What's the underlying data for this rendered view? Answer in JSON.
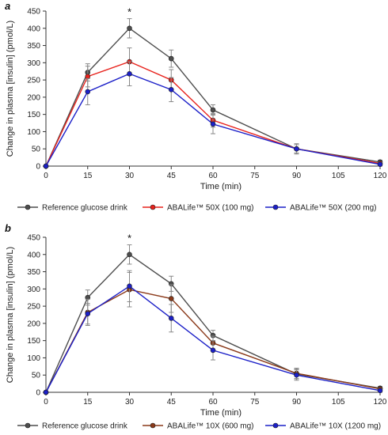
{
  "chart_data": [
    {
      "type": "line",
      "panel_label": "a",
      "xlabel": "Time (min)",
      "ylabel": "Change in plasma [insulin] (pmol/L)",
      "xlim": [
        0,
        120
      ],
      "ylim": [
        0,
        450
      ],
      "xticks": [
        0,
        15,
        30,
        45,
        60,
        75,
        90,
        105,
        120
      ],
      "yticks": [
        0,
        50,
        100,
        150,
        200,
        250,
        300,
        350,
        400,
        450
      ],
      "grid": false,
      "legend_position": "bottom",
      "annotation": {
        "text": "*",
        "x": 30
      },
      "series": [
        {
          "name": "Reference glucose drink",
          "color": "#4d4d4d",
          "x": [
            0,
            15,
            30,
            45,
            60,
            90,
            120
          ],
          "y": [
            0,
            272,
            400,
            312,
            163,
            50,
            12
          ],
          "err": [
            0,
            25,
            28,
            25,
            15,
            12,
            5
          ]
        },
        {
          "name": "ABALife™ 50X (100 mg)",
          "color": "#e8221c",
          "x": [
            0,
            15,
            30,
            45,
            60,
            90,
            120
          ],
          "y": [
            0,
            260,
            303,
            250,
            133,
            50,
            8
          ],
          "err": [
            0,
            30,
            40,
            30,
            20,
            12,
            5
          ]
        },
        {
          "name": "ABALife™ 50X (200 mg)",
          "color": "#1c20c8",
          "x": [
            0,
            15,
            30,
            45,
            60,
            90,
            120
          ],
          "y": [
            0,
            216,
            268,
            222,
            122,
            50,
            5
          ],
          "err": [
            0,
            38,
            35,
            35,
            28,
            15,
            5
          ]
        }
      ]
    },
    {
      "type": "line",
      "panel_label": "b",
      "xlabel": "Time (min)",
      "ylabel": "Change in plasma [insulin] (pmol/L)",
      "xlim": [
        0,
        120
      ],
      "ylim": [
        0,
        450
      ],
      "xticks": [
        0,
        15,
        30,
        45,
        60,
        75,
        90,
        105,
        120
      ],
      "yticks": [
        0,
        50,
        100,
        150,
        200,
        250,
        300,
        350,
        400,
        450
      ],
      "grid": false,
      "legend_position": "bottom",
      "annotation": {
        "text": "*",
        "x": 30
      },
      "series": [
        {
          "name": "Reference glucose drink",
          "color": "#4d4d4d",
          "x": [
            0,
            15,
            30,
            45,
            60,
            90,
            120
          ],
          "y": [
            0,
            275,
            400,
            315,
            165,
            53,
            12
          ],
          "err": [
            0,
            22,
            28,
            22,
            15,
            14,
            5
          ]
        },
        {
          "name": "ABALife™ 10X (600 mg)",
          "color": "#8b3a1a",
          "x": [
            0,
            15,
            30,
            45,
            60,
            90,
            120
          ],
          "y": [
            0,
            232,
            298,
            272,
            143,
            55,
            10
          ],
          "err": [
            0,
            38,
            50,
            40,
            20,
            15,
            5
          ]
        },
        {
          "name": "ABALife™ 10X (1200 mg)",
          "color": "#1c20c8",
          "x": [
            0,
            15,
            30,
            45,
            60,
            90,
            120
          ],
          "y": [
            0,
            228,
            308,
            215,
            122,
            50,
            5
          ],
          "err": [
            0,
            30,
            45,
            40,
            28,
            15,
            5
          ]
        }
      ]
    }
  ]
}
